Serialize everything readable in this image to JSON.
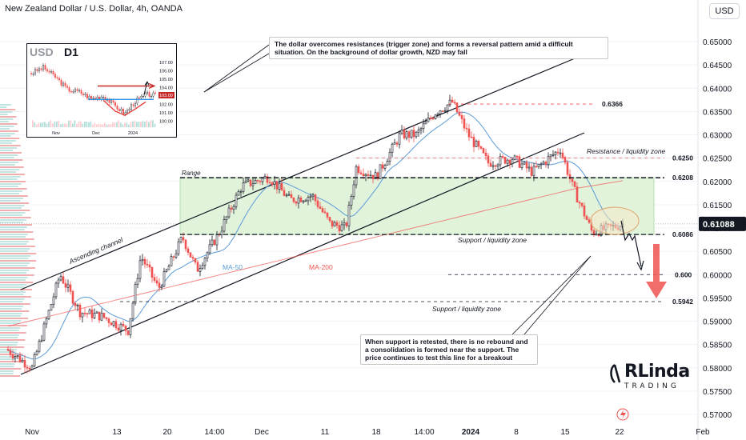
{
  "header": {
    "title": "New Zealand Dollar / U.S. Dollar, 4h, OANDA",
    "currency": "USD"
  },
  "chart_data": {
    "type": "candlestick",
    "symbol": "NZDUSD",
    "timeframe": "4h",
    "ylim": [
      0.5665,
      0.6565
    ],
    "y_ticks": [
      0.57,
      0.575,
      0.58,
      0.585,
      0.59,
      0.595,
      0.6,
      0.605,
      0.61,
      0.615,
      0.62,
      0.625,
      0.63,
      0.635,
      0.64,
      0.645,
      0.65
    ],
    "y_tick_labels": [
      "0.57000",
      "0.57500",
      "0.58000",
      "0.58500",
      "0.59000",
      "0.59500",
      "0.60000",
      "0.60500",
      "0.61000",
      "0.61500",
      "0.62000",
      "0.62500",
      "0.63000",
      "0.63500",
      "0.64000",
      "0.64500",
      "0.65000"
    ],
    "x_labels": [
      "Nov",
      "13",
      "20",
      "14:00",
      "Dec",
      "11",
      "18",
      "14:00",
      "2024",
      "8",
      "15",
      "22",
      "Feb"
    ],
    "x_bold_labels": [
      "2024"
    ],
    "current_price": "0.61088",
    "levels": [
      {
        "value": 0.6366,
        "label": "0.6366"
      },
      {
        "value": 0.625,
        "label": "0.6250"
      },
      {
        "value": 0.6208,
        "label": "0.6208"
      },
      {
        "value": 0.6086,
        "label": "0.6086"
      },
      {
        "value": 0.6,
        "label": "0.600"
      },
      {
        "value": 0.5942,
        "label": "0.5942"
      }
    ],
    "series": [
      {
        "name": "MA-50"
      },
      {
        "name": "MA-200"
      }
    ],
    "annotations": {
      "range": "Range",
      "resistance": "Resistance / liquidity zone",
      "support_upper": "Support / liquidity zone",
      "support_lower": "Support / liquidity zone",
      "channel": "Ascending channel"
    },
    "colors": {
      "up": "#26a69a",
      "down": "#ef5350",
      "neutral": "#131722",
      "ma50": "#5b9bd5",
      "ma200": "#ef5350",
      "zone": "#d9f2d4",
      "target_arrow": "#ef5350",
      "dashed": "#ef5350"
    }
  },
  "notes": {
    "top": "The dollar overcomes resistances (trigger zone) and forms a reversal pattern amid a difficult situation. On the background of dollar growth, NZD may fall",
    "bottom": "When support is retested, there is no rebound and a consolidation is formed near the support. The price continues to test this line for a breakout"
  },
  "inset": {
    "symbol": "USD",
    "timeframe": "D1",
    "price_labels": [
      "107.00",
      "106.00",
      "105.00",
      "104.00",
      "103.00",
      "102.00",
      "101.00",
      "100.00"
    ],
    "current_label": "103.00",
    "x_labels": [
      "Nov",
      "Dec",
      "2024"
    ]
  },
  "logo": {
    "main": "RLinda",
    "sub": "TRADING"
  }
}
